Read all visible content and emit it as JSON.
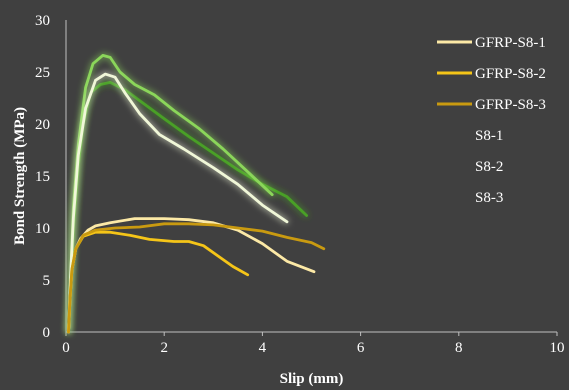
{
  "chart_data": {
    "type": "line",
    "title": "",
    "xlabel": "Slip (mm)",
    "ylabel": "Bond Strength (MPa)",
    "xlim": [
      0,
      10
    ],
    "ylim": [
      0,
      30
    ],
    "xticks": [
      0,
      2,
      4,
      6,
      8,
      10
    ],
    "yticks": [
      0,
      5,
      10,
      15,
      20,
      25,
      30
    ],
    "grid": false,
    "legend_position": "top-right",
    "series": [
      {
        "name": "GFRP-S8-1",
        "color": "#fce9a6",
        "glow": false,
        "points": [
          [
            0.05,
            0
          ],
          [
            0.08,
            3
          ],
          [
            0.12,
            6
          ],
          [
            0.2,
            8
          ],
          [
            0.3,
            9
          ],
          [
            0.45,
            9.8
          ],
          [
            0.6,
            10.2
          ],
          [
            0.9,
            10.5
          ],
          [
            1.4,
            10.9
          ],
          [
            2.0,
            10.9
          ],
          [
            2.5,
            10.8
          ],
          [
            3.0,
            10.5
          ],
          [
            3.5,
            9.8
          ],
          [
            4.0,
            8.5
          ],
          [
            4.5,
            6.8
          ],
          [
            5.05,
            5.8
          ]
        ]
      },
      {
        "name": "GFRP-S8-2",
        "color": "#f5c518",
        "glow": false,
        "points": [
          [
            0.05,
            0
          ],
          [
            0.08,
            3
          ],
          [
            0.12,
            6
          ],
          [
            0.2,
            8
          ],
          [
            0.35,
            9.2
          ],
          [
            0.6,
            9.6
          ],
          [
            0.9,
            9.6
          ],
          [
            1.3,
            9.3
          ],
          [
            1.7,
            8.9
          ],
          [
            2.2,
            8.7
          ],
          [
            2.5,
            8.7
          ],
          [
            2.8,
            8.3
          ],
          [
            3.1,
            7.3
          ],
          [
            3.4,
            6.3
          ],
          [
            3.7,
            5.5
          ]
        ]
      },
      {
        "name": "GFRP-S8-3",
        "color": "#c99a10",
        "glow": false,
        "points": [
          [
            0.05,
            0
          ],
          [
            0.08,
            3
          ],
          [
            0.12,
            6
          ],
          [
            0.2,
            8
          ],
          [
            0.35,
            9.3
          ],
          [
            0.6,
            9.8
          ],
          [
            1.0,
            10.0
          ],
          [
            1.5,
            10.1
          ],
          [
            2.0,
            10.4
          ],
          [
            2.5,
            10.4
          ],
          [
            3.0,
            10.3
          ],
          [
            3.5,
            10.0
          ],
          [
            4.0,
            9.7
          ],
          [
            4.5,
            9.1
          ],
          [
            5.0,
            8.6
          ],
          [
            5.25,
            8.0
          ]
        ]
      },
      {
        "name": "S8-1",
        "color": "#4aa028",
        "glow": true,
        "points": [
          [
            0.05,
            0
          ],
          [
            0.1,
            5
          ],
          [
            0.15,
            10
          ],
          [
            0.25,
            16
          ],
          [
            0.35,
            20
          ],
          [
            0.5,
            23
          ],
          [
            0.7,
            23.8
          ],
          [
            0.9,
            24
          ],
          [
            1.2,
            23.3
          ],
          [
            1.6,
            21.9
          ],
          [
            2.0,
            20.5
          ],
          [
            2.5,
            18.8
          ],
          [
            3.0,
            17.2
          ],
          [
            3.5,
            15.6
          ],
          [
            4.0,
            14.2
          ],
          [
            4.5,
            13
          ],
          [
            4.9,
            11.2
          ]
        ]
      },
      {
        "name": "S8-2",
        "color": "#8bd65a",
        "glow": true,
        "points": [
          [
            0.05,
            0
          ],
          [
            0.1,
            6
          ],
          [
            0.15,
            12
          ],
          [
            0.25,
            18
          ],
          [
            0.4,
            23.5
          ],
          [
            0.55,
            25.8
          ],
          [
            0.75,
            26.6
          ],
          [
            0.9,
            26.4
          ],
          [
            1.1,
            25
          ],
          [
            1.4,
            23.8
          ],
          [
            1.8,
            22.8
          ],
          [
            2.2,
            21.3
          ],
          [
            2.7,
            19.6
          ],
          [
            3.2,
            17.6
          ],
          [
            3.7,
            15.4
          ],
          [
            4.2,
            13.2
          ]
        ]
      },
      {
        "name": "S8-3",
        "color": "#f0f7d8",
        "glow": true,
        "points": [
          [
            0.05,
            0
          ],
          [
            0.1,
            6
          ],
          [
            0.15,
            11
          ],
          [
            0.25,
            17
          ],
          [
            0.4,
            21.5
          ],
          [
            0.6,
            24.2
          ],
          [
            0.8,
            24.8
          ],
          [
            1.0,
            24.5
          ],
          [
            1.2,
            23
          ],
          [
            1.5,
            21
          ],
          [
            1.9,
            19
          ],
          [
            2.4,
            17.6
          ],
          [
            3.0,
            15.8
          ],
          [
            3.5,
            14.2
          ],
          [
            4.0,
            12.2
          ],
          [
            4.5,
            10.6
          ]
        ]
      }
    ]
  }
}
